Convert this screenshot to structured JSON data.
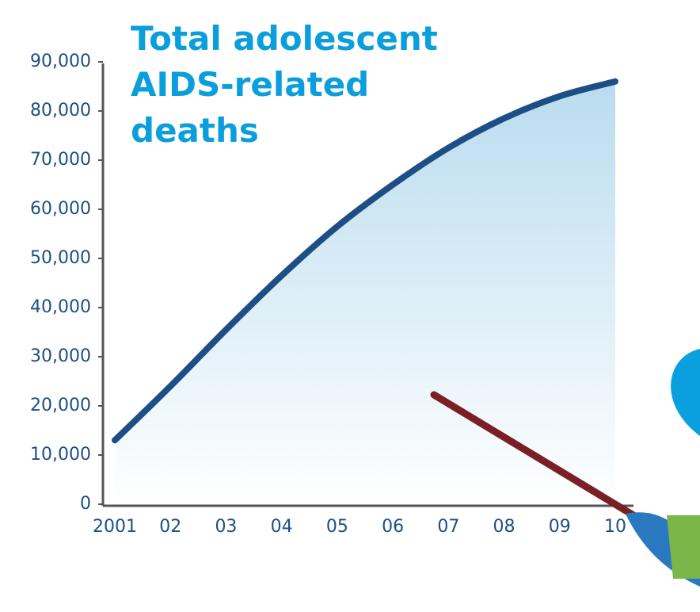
{
  "chart_data": {
    "type": "area",
    "title": "Total adolescent AIDS-related deaths",
    "categories": [
      "2001",
      "02",
      "03",
      "04",
      "05",
      "06",
      "07",
      "08",
      "09",
      "10"
    ],
    "series": [
      {
        "name": "Total adolescent AIDS-related deaths",
        "color": "#1d4f86",
        "values": [
          13000,
          24000,
          35500,
          46500,
          56500,
          65000,
          72500,
          78500,
          83000,
          86000
        ]
      }
    ],
    "ylim": [
      0,
      90000
    ],
    "yticks": [
      0,
      {
        "value": 10000,
        "label": "10,000"
      },
      {
        "value": 20000,
        "label": "20,000"
      },
      {
        "value": 30000,
        "label": "30,000"
      },
      {
        "value": 40000,
        "label": "40,000"
      },
      {
        "value": 50000,
        "label": "50,000"
      },
      {
        "value": 60000,
        "label": "60,000"
      },
      {
        "value": 70000,
        "label": "70,000"
      },
      {
        "value": 80000,
        "label": "80,000"
      },
      {
        "value": 90000,
        "label": "90,000"
      }
    ],
    "grid": false
  }
}
